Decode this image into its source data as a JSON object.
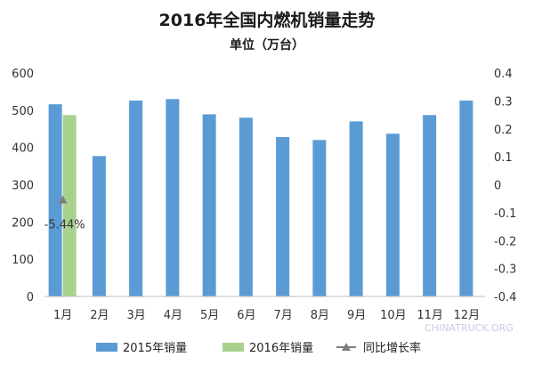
{
  "chart_data": {
    "type": "bar",
    "title": "2016年全国内燃机销量走势",
    "subtitle": "单位（万台）",
    "categories": [
      "1月",
      "2月",
      "3月",
      "4月",
      "5月",
      "6月",
      "7月",
      "8月",
      "9月",
      "10月",
      "11月",
      "12月"
    ],
    "series": [
      {
        "name": "2015年销量",
        "color": "#5b9bd5",
        "values": [
          516,
          377,
          526,
          530,
          489,
          480,
          428,
          420,
          470,
          437,
          487,
          526
        ]
      },
      {
        "name": "2016年销量",
        "color": "#a9d18e",
        "values": [
          487,
          null,
          null,
          null,
          null,
          null,
          null,
          null,
          null,
          null,
          null,
          null
        ]
      },
      {
        "name": "同比增长率",
        "type": "line",
        "axis": "right",
        "color": "#7f7f7f",
        "values": [
          -0.0544,
          null,
          null,
          null,
          null,
          null,
          null,
          null,
          null,
          null,
          null,
          null
        ]
      }
    ],
    "ylim": [
      0,
      600
    ],
    "y_ticks": [
      "0",
      "100",
      "200",
      "300",
      "400",
      "500",
      "600"
    ],
    "y2lim": [
      -0.4,
      0.4
    ],
    "y2_ticks": [
      "-0.4",
      "-0.3",
      "-0.2",
      "-0.1",
      "0",
      "0.1",
      "0.2",
      "0.3",
      "0.4"
    ],
    "data_labels": [
      {
        "series": "同比增长率",
        "category": "1月",
        "text": "-5.44%"
      }
    ],
    "legend_position": "bottom",
    "grid": false
  },
  "watermark": {
    "text": "CHINATRUCK.ORG"
  }
}
